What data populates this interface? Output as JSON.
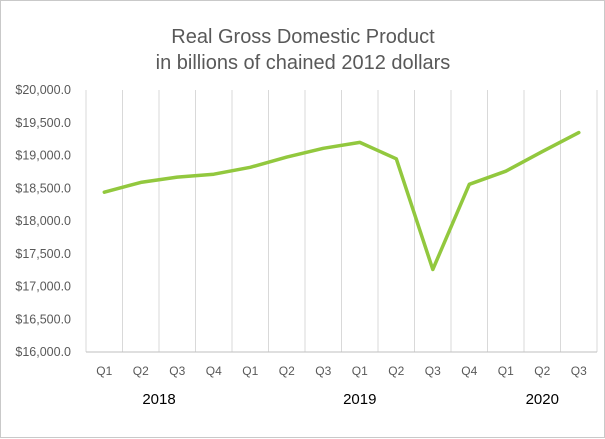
{
  "chart_data": {
    "type": "line",
    "title": "Real Gross Domestic Product",
    "subtitle": "in billions of chained 2012 dollars",
    "xlabel": "",
    "ylabel": "",
    "categories": [
      "Q1",
      "Q2",
      "Q3",
      "Q4",
      "Q1",
      "Q2",
      "Q3",
      "Q1",
      "Q2",
      "Q3",
      "Q4",
      "Q1",
      "Q2",
      "Q3"
    ],
    "year_groups": [
      {
        "label": "2018",
        "start": 0,
        "end": 3
      },
      {
        "label": "2019",
        "start": 4,
        "end": 10
      },
      {
        "label": "2020",
        "start": 11,
        "end": 13
      }
    ],
    "series": [
      {
        "values": [
          18440,
          18590,
          18670,
          18715,
          18820,
          18975,
          19110,
          19200,
          18950,
          17260,
          18560,
          18760,
          19060,
          19350
        ]
      }
    ],
    "ylim": [
      16000,
      20000
    ],
    "y_ticks": [
      16000,
      16500,
      17000,
      17500,
      18000,
      18500,
      19000,
      19500,
      20000
    ],
    "y_tick_labels": [
      "$16,000.0",
      "$16,500.0",
      "$17,000.0",
      "$17,500.0",
      "$18,000.0",
      "$18,500.0",
      "$19,000.0",
      "$19,500.0",
      "$20,000.0"
    ],
    "grid": "vertical",
    "legend": "none",
    "colors": {
      "line": "#92c83e",
      "grid": "#d9d9d9",
      "text": "#595959"
    }
  }
}
